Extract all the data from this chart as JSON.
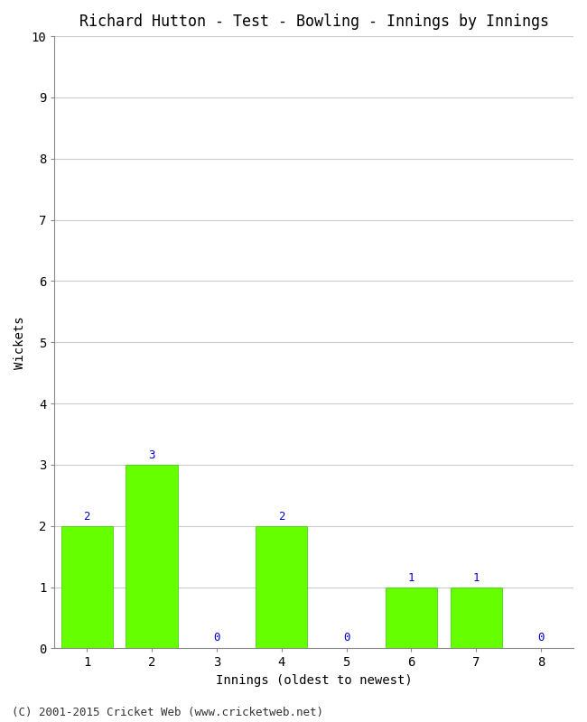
{
  "title": "Richard Hutton - Test - Bowling - Innings by Innings",
  "xlabel": "Innings (oldest to newest)",
  "ylabel": "Wickets",
  "categories": [
    "1",
    "2",
    "3",
    "4",
    "5",
    "6",
    "7",
    "8"
  ],
  "values": [
    2,
    3,
    0,
    2,
    0,
    1,
    1,
    0
  ],
  "bar_color": "#66ff00",
  "bar_edge_color": "#33cc00",
  "ylim": [
    0,
    10
  ],
  "yticks": [
    0,
    1,
    2,
    3,
    4,
    5,
    6,
    7,
    8,
    9,
    10
  ],
  "label_color": "#0000cc",
  "title_fontsize": 12,
  "axis_label_fontsize": 10,
  "tick_fontsize": 10,
  "annotation_fontsize": 9,
  "background_color": "#ffffff",
  "plot_background_color": "#ffffff",
  "footer": "(C) 2001-2015 Cricket Web (www.cricketweb.net)",
  "footer_fontsize": 9
}
